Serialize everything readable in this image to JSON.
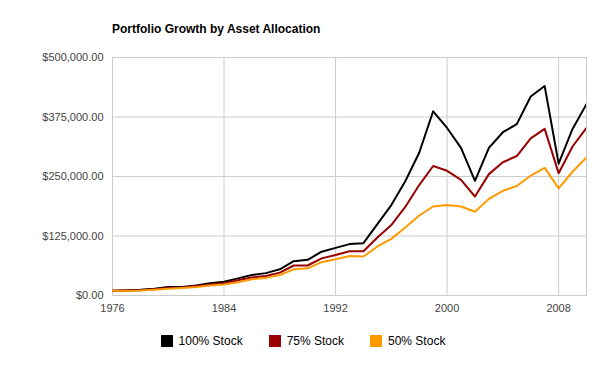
{
  "chart_data": {
    "type": "line",
    "title": "Portfolio Growth by Asset Allocation",
    "x": [
      1976,
      1977,
      1978,
      1979,
      1980,
      1981,
      1982,
      1983,
      1984,
      1985,
      1986,
      1987,
      1988,
      1989,
      1990,
      1991,
      1992,
      1993,
      1994,
      1995,
      1996,
      1997,
      1998,
      1999,
      2000,
      2001,
      2002,
      2003,
      2004,
      2005,
      2006,
      2007,
      2008,
      2009,
      2010
    ],
    "series": [
      {
        "name": "100% Stock",
        "color": "#000000",
        "values": [
          10000,
          11000,
          12000,
          14000,
          18000,
          18000,
          21000,
          26000,
          29000,
          36000,
          43000,
          47000,
          55000,
          72000,
          75000,
          92000,
          100000,
          108000,
          110000,
          150000,
          190000,
          240000,
          300000,
          387000,
          352000,
          310000,
          241000,
          310000,
          343000,
          360000,
          418000,
          440000,
          277000,
          350000,
          402000
        ]
      },
      {
        "name": "75% Stock",
        "color": "#990000",
        "values": [
          10000,
          10500,
          11000,
          13000,
          16000,
          17000,
          20000,
          23000,
          26000,
          32000,
          38000,
          41000,
          48000,
          63000,
          63000,
          78000,
          85000,
          93000,
          93000,
          122000,
          148000,
          186000,
          232000,
          272000,
          262000,
          243000,
          208000,
          255000,
          280000,
          293000,
          330000,
          350000,
          257000,
          313000,
          352000
        ]
      },
      {
        "name": "50% Stock",
        "color": "#ff9900",
        "values": [
          10000,
          10000,
          10500,
          12000,
          14000,
          16000,
          18000,
          21000,
          23000,
          28000,
          34000,
          37000,
          43000,
          55000,
          57000,
          70000,
          76000,
          83000,
          82000,
          103000,
          119000,
          143000,
          168000,
          187000,
          190000,
          187000,
          176000,
          203000,
          220000,
          230000,
          252000,
          268000,
          225000,
          260000,
          290000
        ]
      }
    ],
    "xlim": [
      1976,
      2010
    ],
    "xticks": [
      1976,
      1984,
      1992,
      2000,
      2008
    ],
    "ylim": [
      0,
      500000
    ],
    "yticks": [
      {
        "value": 0,
        "label": "$0.00"
      },
      {
        "value": 125000,
        "label": "$125,000.00"
      },
      {
        "value": 250000,
        "label": "$250,000.00"
      },
      {
        "value": 375000,
        "label": "$375,000.00"
      },
      {
        "value": 500000,
        "label": "$500,000.00"
      }
    ],
    "grid": true,
    "legend": "bottom"
  }
}
